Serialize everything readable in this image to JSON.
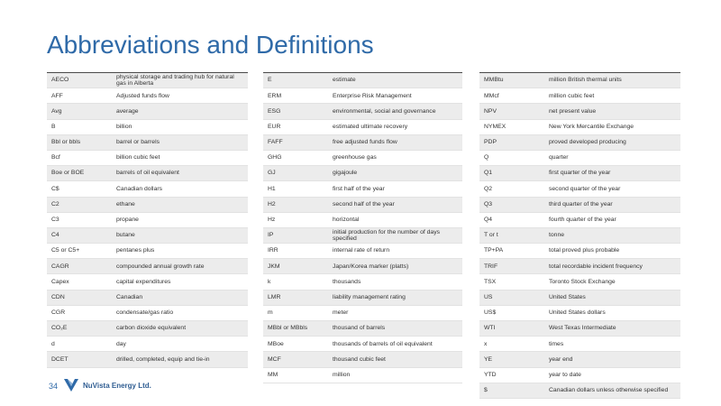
{
  "title": "Abbreviations and Definitions",
  "tables": [
    {
      "rows": [
        [
          "AECO",
          "physical storage and trading hub for natural gas in Alberta"
        ],
        [
          "AFF",
          "Adjusted funds flow"
        ],
        [
          "Avg",
          "average"
        ],
        [
          "B",
          "billion"
        ],
        [
          "Bbl or bbls",
          "barrel or barrels"
        ],
        [
          "Bcf",
          "billion cubic feet"
        ],
        [
          "Boe or BOE",
          "barrels of oil equivalent"
        ],
        [
          "C$",
          "Canadian dollars"
        ],
        [
          "C2",
          "ethane"
        ],
        [
          "C3",
          "propane"
        ],
        [
          "C4",
          "butane"
        ],
        [
          "C5 or C5+",
          "pentanes plus"
        ],
        [
          "CAGR",
          "compounded annual growth rate"
        ],
        [
          "Capex",
          "capital expenditures"
        ],
        [
          "CDN",
          "Canadian"
        ],
        [
          "CGR",
          "condensate/gas ratio"
        ],
        [
          "CO₂E",
          "carbon dioxide equivalent"
        ],
        [
          "d",
          "day"
        ],
        [
          "DCET",
          "drilled, completed, equip and tie-in"
        ]
      ]
    },
    {
      "rows": [
        [
          "E",
          "estimate"
        ],
        [
          "ERM",
          "Enterprise Risk Management"
        ],
        [
          "ESG",
          "environmental, social and governance"
        ],
        [
          "EUR",
          "estimated ultimate recovery"
        ],
        [
          "FAFF",
          "free adjusted funds flow"
        ],
        [
          "GHG",
          "greenhouse gas"
        ],
        [
          "GJ",
          "gigajoule"
        ],
        [
          "H1",
          "first half of the year"
        ],
        [
          "H2",
          "second half of the year"
        ],
        [
          "Hz",
          "horizontal"
        ],
        [
          "IP",
          "initial production for the number of days specified"
        ],
        [
          "IRR",
          "internal rate of return"
        ],
        [
          "JKM",
          "Japan/Korea marker (platts)"
        ],
        [
          "k",
          "thousands"
        ],
        [
          "LMR",
          "liability management rating"
        ],
        [
          "m",
          "meter"
        ],
        [
          "MBbl or MBbls",
          "thousand of barrels"
        ],
        [
          "MBoe",
          "thousands of barrels of oil equivalent"
        ],
        [
          "MCF",
          "thousand cubic feet"
        ],
        [
          "MM",
          "million"
        ]
      ]
    },
    {
      "rows": [
        [
          "MMBtu",
          "million British thermal units"
        ],
        [
          "MMcf",
          "million cubic feet"
        ],
        [
          "NPV",
          "net present value"
        ],
        [
          "NYMEX",
          "New York Mercantile Exchange"
        ],
        [
          "PDP",
          "proved developed producing"
        ],
        [
          "Q",
          "quarter"
        ],
        [
          "Q1",
          "first quarter of the year"
        ],
        [
          "Q2",
          "second quarter of the year"
        ],
        [
          "Q3",
          "third quarter of the year"
        ],
        [
          "Q4",
          "fourth quarter of the year"
        ],
        [
          "T or t",
          "tonne"
        ],
        [
          "TP+PA",
          "total proved plus probable"
        ],
        [
          "TRIF",
          "total recordable incident frequency"
        ],
        [
          "TSX",
          "Toronto Stock Exchange"
        ],
        [
          "US",
          "United States"
        ],
        [
          "US$",
          "United States dollars"
        ],
        [
          "WTI",
          "West Texas Intermediate"
        ],
        [
          "x",
          "times"
        ],
        [
          "YE",
          "year end"
        ],
        [
          "YTD",
          "year to date"
        ],
        [
          "$",
          "Canadian dollars unless otherwise specified"
        ]
      ]
    }
  ],
  "footer": {
    "page": "34",
    "company": "NuVista Energy Ltd."
  }
}
